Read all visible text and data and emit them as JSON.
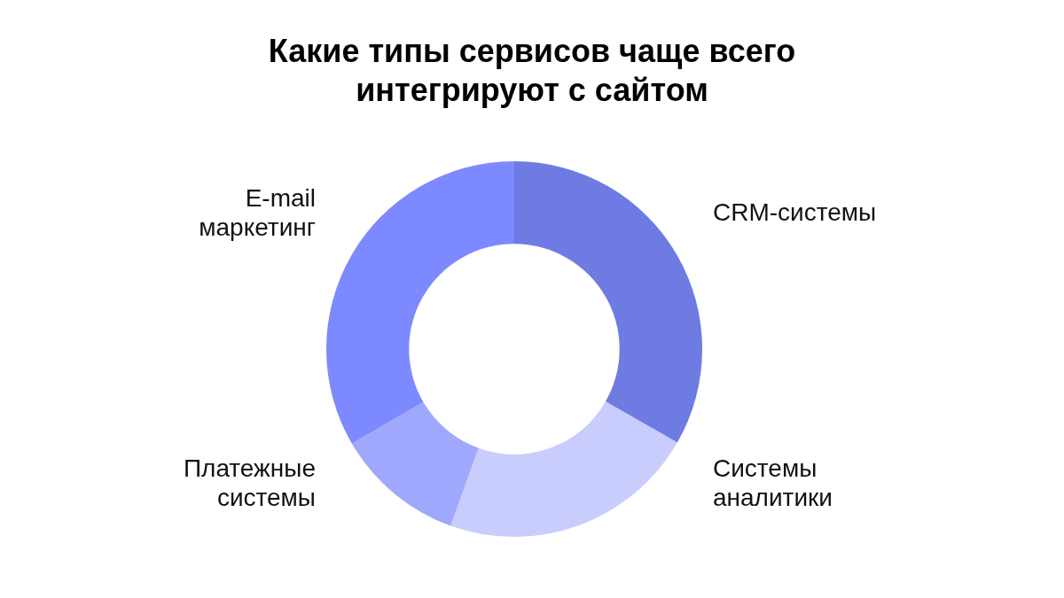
{
  "chart_data": {
    "type": "donut",
    "title": "Какие типы сервисов чаще всего интегрируют с сайтом",
    "categories": [
      "CRM-системы",
      "Системы аналитики",
      "Платежные системы",
      "E-mail маркетинг"
    ],
    "values": [
      33.3,
      22.2,
      11.1,
      33.4
    ],
    "colors": [
      "#6d7be3",
      "#c9cdfd",
      "#9fa8fd",
      "#7d89fe"
    ]
  }
}
